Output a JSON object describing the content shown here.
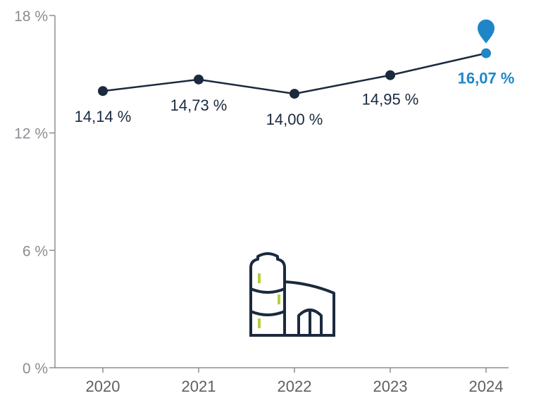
{
  "chart_data": {
    "type": "line",
    "categories": [
      "2020",
      "2021",
      "2022",
      "2023",
      "2024"
    ],
    "values": [
      14.14,
      14.73,
      14.0,
      14.95,
      16.07
    ],
    "data_labels": [
      "14,14 %",
      "14,73 %",
      "14,00 %",
      "14,95 %",
      "16,07 %"
    ],
    "y_ticks": [
      {
        "value": 0,
        "label": "0 %"
      },
      {
        "value": 6,
        "label": "6 %"
      },
      {
        "value": 12,
        "label": "12 %"
      },
      {
        "value": 18,
        "label": "18 %"
      }
    ],
    "ylim": [
      0,
      18
    ],
    "highlight_index": 4,
    "grid": false,
    "colors": {
      "line": "#1b2a3e",
      "highlight": "#1e86c8",
      "axis": "#8a8d91",
      "icon_accent": "#b5cf3a"
    },
    "icons": [
      "location-pin-icon",
      "factory-silo-icon"
    ]
  }
}
